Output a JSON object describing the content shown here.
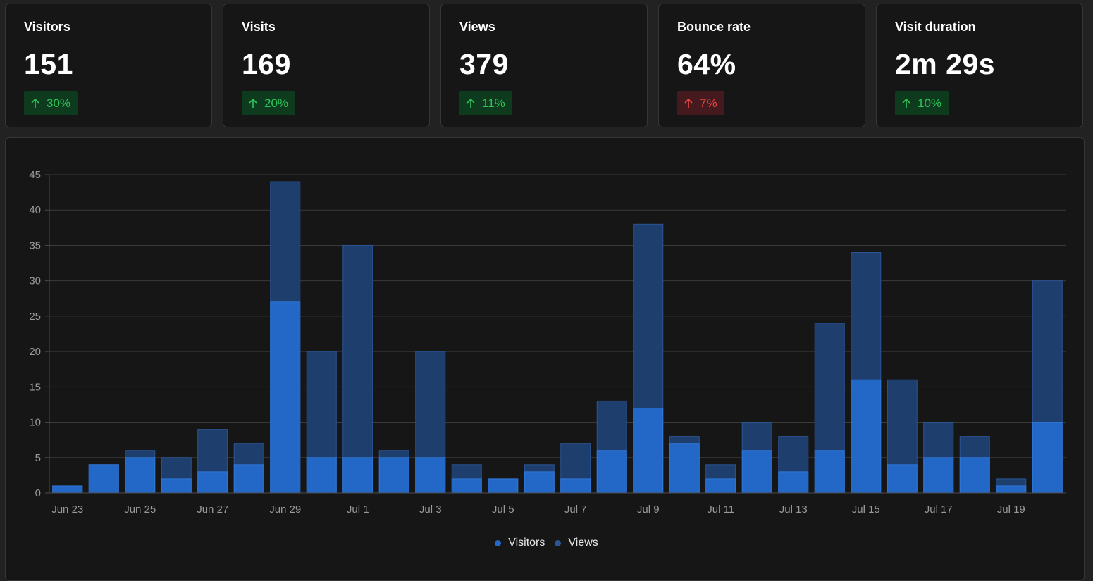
{
  "cards": [
    {
      "label": "Visitors",
      "value": "151",
      "change": "30%",
      "trend": "good"
    },
    {
      "label": "Visits",
      "value": "169",
      "change": "20%",
      "trend": "good"
    },
    {
      "label": "Views",
      "value": "379",
      "change": "11%",
      "trend": "good"
    },
    {
      "label": "Bounce rate",
      "value": "64%",
      "change": "7%",
      "trend": "bad"
    },
    {
      "label": "Visit duration",
      "value": "2m 29s",
      "change": "10%",
      "trend": "good"
    }
  ],
  "colors": {
    "visitors": "#2468c7",
    "views": "#1e3e6d",
    "good_text": "#2fc45a",
    "bad_text": "#ef4444"
  },
  "chart_data": {
    "type": "bar",
    "x": [
      "Jun 23",
      "Jun 24",
      "Jun 25",
      "Jun 26",
      "Jun 27",
      "Jun 28",
      "Jun 29",
      "Jun 30",
      "Jul 1",
      "Jul 2",
      "Jul 3",
      "Jul 4",
      "Jul 5",
      "Jul 6",
      "Jul 7",
      "Jul 8",
      "Jul 9",
      "Jul 10",
      "Jul 11",
      "Jul 12",
      "Jul 13",
      "Jul 14",
      "Jul 15",
      "Jul 16",
      "Jul 17",
      "Jul 18",
      "Jul 19",
      "Jul 20"
    ],
    "tick_labels": [
      "Jun 23",
      "",
      "Jun 25",
      "",
      "Jun 27",
      "",
      "Jun 29",
      "",
      "Jul 1",
      "",
      "Jul 3",
      "",
      "Jul 5",
      "",
      "Jul 7",
      "",
      "Jul 9",
      "",
      "Jul 11",
      "",
      "Jul 13",
      "",
      "Jul 15",
      "",
      "Jul 17",
      "",
      "Jul 19",
      ""
    ],
    "series": [
      {
        "name": "Visitors",
        "values": [
          1,
          4,
          5,
          2,
          3,
          4,
          27,
          5,
          5,
          5,
          5,
          2,
          2,
          3,
          2,
          6,
          12,
          7,
          2,
          6,
          3,
          6,
          16,
          4,
          5,
          5,
          1,
          10
        ]
      },
      {
        "name": "Views",
        "values": [
          1,
          4,
          6,
          5,
          9,
          7,
          44,
          20,
          35,
          6,
          20,
          4,
          2,
          4,
          7,
          13,
          38,
          8,
          4,
          10,
          8,
          24,
          34,
          16,
          10,
          8,
          2,
          30
        ]
      }
    ],
    "ylim": [
      0,
      45
    ],
    "yticks": [
      0,
      5,
      10,
      15,
      20,
      25,
      30,
      35,
      40,
      45
    ],
    "grid": true,
    "overlay": true,
    "legend": "bottom-center"
  }
}
